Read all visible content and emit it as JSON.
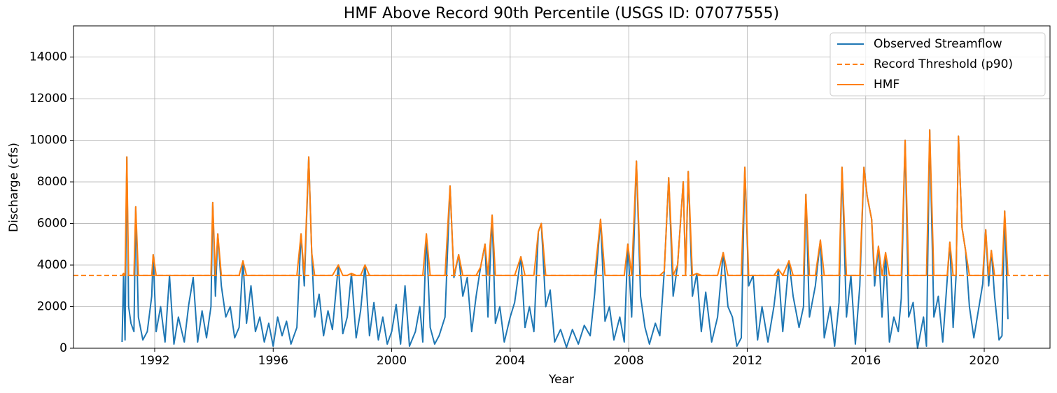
{
  "chart_data": {
    "type": "line",
    "title": "HMF Above Record 90th Percentile (USGS ID: 07077555)",
    "x_label": "Year",
    "y_label": "Discharge (cfs)",
    "xlim": [
      1989.26,
      2022.22
    ],
    "ylim": [
      0,
      15500
    ],
    "xticks": [
      1992,
      1996,
      2000,
      2004,
      2008,
      2012,
      2016,
      2020
    ],
    "yticks": [
      0,
      2000,
      4000,
      6000,
      8000,
      10000,
      12000,
      14000
    ],
    "grid": true,
    "legend": "upper right",
    "x": [
      1990.9,
      1990.95,
      1991.0,
      1991.06,
      1991.12,
      1991.2,
      1991.3,
      1991.36,
      1991.45,
      1991.6,
      1991.75,
      1991.9,
      1991.95,
      1992.05,
      1992.2,
      1992.35,
      1992.5,
      1992.65,
      1992.8,
      1993.0,
      1993.15,
      1993.3,
      1993.45,
      1993.6,
      1993.75,
      1993.9,
      1993.96,
      1994.05,
      1994.13,
      1994.25,
      1994.4,
      1994.55,
      1994.7,
      1994.85,
      1994.98,
      1995.1,
      1995.25,
      1995.4,
      1995.55,
      1995.7,
      1995.85,
      1996.0,
      1996.15,
      1996.3,
      1996.45,
      1996.6,
      1996.8,
      1996.94,
      1997.05,
      1997.2,
      1997.3,
      1997.4,
      1997.55,
      1997.7,
      1997.85,
      1998.0,
      1998.2,
      1998.35,
      1998.5,
      1998.64,
      1998.8,
      1998.95,
      1999.1,
      1999.25,
      1999.4,
      1999.55,
      1999.7,
      1999.85,
      2000.0,
      2000.15,
      2000.3,
      2000.45,
      2000.6,
      2000.8,
      2000.95,
      2001.05,
      2001.17,
      2001.3,
      2001.45,
      2001.6,
      2001.8,
      2001.97,
      2002.1,
      2002.26,
      2002.4,
      2002.55,
      2002.7,
      2002.85,
      2003.0,
      2003.15,
      2003.25,
      2003.39,
      2003.5,
      2003.65,
      2003.8,
      2004.0,
      2004.15,
      2004.36,
      2004.5,
      2004.65,
      2004.8,
      2004.95,
      2005.05,
      2005.2,
      2005.35,
      2005.5,
      2005.7,
      2005.9,
      2006.1,
      2006.3,
      2006.5,
      2006.7,
      2006.85,
      2007.05,
      2007.2,
      2007.35,
      2007.5,
      2007.7,
      2007.85,
      2007.97,
      2008.1,
      2008.26,
      2008.4,
      2008.55,
      2008.7,
      2008.9,
      2009.05,
      2009.2,
      2009.35,
      2009.5,
      2009.65,
      2009.84,
      2009.92,
      2010.01,
      2010.15,
      2010.3,
      2010.45,
      2010.6,
      2010.8,
      2011.0,
      2011.19,
      2011.35,
      2011.5,
      2011.65,
      2011.8,
      2011.92,
      2012.05,
      2012.2,
      2012.35,
      2012.5,
      2012.7,
      2012.9,
      2013.05,
      2013.2,
      2013.41,
      2013.55,
      2013.75,
      2013.9,
      2013.98,
      2014.1,
      2014.3,
      2014.47,
      2014.6,
      2014.8,
      2014.95,
      2015.1,
      2015.2,
      2015.35,
      2015.5,
      2015.65,
      2015.8,
      2015.94,
      2016.05,
      2016.2,
      2016.3,
      2016.43,
      2016.55,
      2016.67,
      2016.8,
      2016.95,
      2017.1,
      2017.2,
      2017.33,
      2017.45,
      2017.6,
      2017.75,
      2017.95,
      2018.05,
      2018.16,
      2018.3,
      2018.45,
      2018.6,
      2018.75,
      2018.84,
      2018.95,
      2019.05,
      2019.13,
      2019.25,
      2019.37,
      2019.5,
      2019.65,
      2019.8,
      2019.95,
      2020.05,
      2020.15,
      2020.24,
      2020.35,
      2020.5,
      2020.6,
      2020.69,
      2020.8
    ],
    "series": [
      {
        "name": "Observed Streamflow",
        "color": "#1f77b4",
        "dash": false,
        "values": [
          300,
          3600,
          400,
          9200,
          2000,
          1200,
          800,
          6800,
          1500,
          400,
          800,
          2500,
          4500,
          800,
          2000,
          300,
          3500,
          200,
          1500,
          300,
          2100,
          3400,
          300,
          1800,
          500,
          2000,
          7000,
          2500,
          5500,
          3000,
          1500,
          2000,
          500,
          1000,
          4200,
          1200,
          3000,
          800,
          1500,
          300,
          1200,
          100,
          1500,
          600,
          1300,
          200,
          1000,
          5500,
          3000,
          9200,
          4600,
          1500,
          2600,
          600,
          1800,
          900,
          4000,
          700,
          1500,
          3600,
          500,
          1800,
          4000,
          600,
          2200,
          400,
          1500,
          200,
          800,
          2100,
          200,
          3000,
          100,
          800,
          2000,
          300,
          5500,
          1000,
          200,
          600,
          1500,
          7800,
          3400,
          4500,
          2500,
          3400,
          800,
          2500,
          3900,
          5000,
          1500,
          6400,
          1200,
          2000,
          300,
          1500,
          2200,
          4400,
          1000,
          2000,
          800,
          5600,
          6000,
          2000,
          2800,
          300,
          900,
          50,
          900,
          200,
          1100,
          600,
          2600,
          6200,
          1300,
          2000,
          400,
          1500,
          300,
          5000,
          1500,
          9000,
          2500,
          1000,
          200,
          1200,
          600,
          3700,
          8200,
          2500,
          4000,
          8000,
          3500,
          8500,
          2500,
          3600,
          800,
          2700,
          300,
          1500,
          4600,
          2000,
          1500,
          100,
          500,
          8700,
          3000,
          3500,
          400,
          2000,
          300,
          2000,
          3800,
          800,
          4200,
          2500,
          1000,
          2000,
          7400,
          1500,
          3000,
          5200,
          500,
          2000,
          100,
          2200,
          8700,
          1500,
          3500,
          200,
          3000,
          8700,
          7300,
          6200,
          3000,
          4900,
          1500,
          4600,
          300,
          1500,
          800,
          2400,
          10000,
          1500,
          2200,
          0,
          1500,
          100,
          10500,
          1500,
          2500,
          300,
          3300,
          5100,
          1000,
          3500,
          10200,
          5800,
          4700,
          2000,
          500,
          1800,
          3100,
          5700,
          3000,
          4700,
          2500,
          400,
          600,
          6600,
          1400
        ]
      },
      {
        "name": "Record Threshold (p90)",
        "color": "#ff7f0e",
        "dash": true,
        "x": [
          1989.26,
          2022.22
        ],
        "values": [
          3500,
          3500
        ]
      },
      {
        "name": "HMF",
        "color": "#ff7f0e",
        "dash": false,
        "values": [
          3500,
          3600,
          3500,
          9200,
          3500,
          3500,
          3500,
          6800,
          3500,
          3500,
          3500,
          3500,
          4500,
          3500,
          3500,
          3500,
          3500,
          3500,
          3500,
          3500,
          3500,
          3500,
          3500,
          3500,
          3500,
          3500,
          7000,
          3500,
          5500,
          3500,
          3500,
          3500,
          3500,
          3500,
          4200,
          3500,
          3500,
          3500,
          3500,
          3500,
          3500,
          3500,
          3500,
          3500,
          3500,
          3500,
          3500,
          5500,
          3500,
          9200,
          4600,
          3500,
          3500,
          3500,
          3500,
          3500,
          4000,
          3500,
          3500,
          3600,
          3500,
          3500,
          4000,
          3500,
          3500,
          3500,
          3500,
          3500,
          3500,
          3500,
          3500,
          3500,
          3500,
          3500,
          3500,
          3500,
          5500,
          3500,
          3500,
          3500,
          3500,
          7800,
          3500,
          4500,
          3500,
          3500,
          3500,
          3500,
          3900,
          5000,
          3500,
          6400,
          3500,
          3500,
          3500,
          3500,
          3500,
          4400,
          3500,
          3500,
          3500,
          5600,
          6000,
          3500,
          3500,
          3500,
          3500,
          3500,
          3500,
          3500,
          3500,
          3500,
          3500,
          6200,
          3500,
          3500,
          3500,
          3500,
          3500,
          5000,
          3500,
          9000,
          3500,
          3500,
          3500,
          3500,
          3500,
          3700,
          8200,
          3500,
          4000,
          8000,
          3500,
          8500,
          3500,
          3600,
          3500,
          3500,
          3500,
          3500,
          4600,
          3500,
          3500,
          3500,
          3500,
          8700,
          3500,
          3500,
          3500,
          3500,
          3500,
          3500,
          3800,
          3500,
          4200,
          3500,
          3500,
          3500,
          7400,
          3500,
          3500,
          5200,
          3500,
          3500,
          3500,
          3500,
          8700,
          3500,
          3500,
          3500,
          3500,
          8700,
          7300,
          6200,
          3500,
          4900,
          3500,
          4600,
          3500,
          3500,
          3500,
          3500,
          10000,
          3500,
          3500,
          3500,
          3500,
          3500,
          10500,
          3500,
          3500,
          3500,
          3500,
          5100,
          3500,
          3500,
          10200,
          5800,
          4700,
          3500,
          3500,
          3500,
          3500,
          5700,
          3500,
          4700,
          3500,
          3500,
          3500,
          6600,
          3500
        ]
      }
    ]
  }
}
